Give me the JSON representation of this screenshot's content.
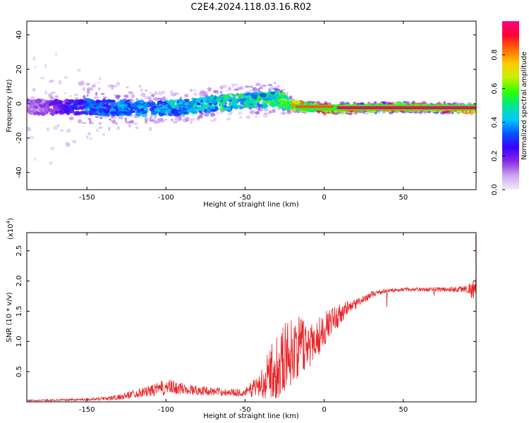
{
  "figure": {
    "title": "C2E4.2024.118.03.16.R02"
  },
  "chart_data": [
    {
      "type": "heatmap",
      "title": "C2E4.2024.118.03.16.R02",
      "xlabel": "Height of straight line (km)",
      "ylabel": "Frequency (Hz)",
      "xlim": [
        -188,
        96
      ],
      "ylim": [
        -50,
        48
      ],
      "xticks": [
        -150,
        -100,
        -50,
        0,
        50
      ],
      "yticks": [
        40,
        20,
        0,
        -20,
        -40
      ],
      "colorbar": {
        "label": "Normalized spectral amplitude",
        "range": [
          0.0,
          1.0
        ],
        "ticks": [
          0.0,
          0.2,
          0.4,
          0.6,
          0.8
        ],
        "stops": [
          "#f4ecfb",
          "#c9a6f0",
          "#8a2be2",
          "#3c00ff",
          "#0055ff",
          "#00c8ff",
          "#00e68c",
          "#33ff00",
          "#c8f000",
          "#ffc800",
          "#ff6a00",
          "#ff0033",
          "#ff0080"
        ]
      },
      "description_points": [
        {
          "x": -180,
          "freq_center": -2,
          "spread": 48,
          "amp": 0.15
        },
        {
          "x": -150,
          "freq_center": -2,
          "spread": 20,
          "amp": 0.35
        },
        {
          "x": -100,
          "freq_center": -3,
          "spread": 10,
          "amp": 0.45
        },
        {
          "x": -60,
          "freq_center": 1,
          "spread": 10,
          "amp": 0.5
        },
        {
          "x": -30,
          "freq_center": 3,
          "spread": 10,
          "amp": 0.55
        },
        {
          "x": -20,
          "freq_center": -1,
          "spread": 4,
          "amp": 0.75
        },
        {
          "x": 5,
          "freq_center": -3,
          "spread": 3,
          "amp": 0.9
        },
        {
          "x": 50,
          "freq_center": -2,
          "spread": 3,
          "amp": 0.95
        },
        {
          "x": 90,
          "freq_center": -3,
          "spread": 3,
          "amp": 0.9
        }
      ]
    },
    {
      "type": "line",
      "xlabel": "Height of straight line (km)",
      "ylabel": "SNR (10 * v/v)",
      "y_multiplier": "(x10",
      "y_multiplier_exp": "4",
      "xlim": [
        -188,
        96
      ],
      "ylim": [
        0,
        2.8
      ],
      "xticks": [
        -150,
        -100,
        -50,
        0,
        50
      ],
      "yticks": [
        0.5,
        1.0,
        1.5,
        2.0,
        2.5
      ],
      "ytick_labels": [
        "0.5",
        "1.0",
        "1.5",
        "2.0",
        "2.5"
      ],
      "series": [
        {
          "name": "SNR",
          "color": "#e8262a",
          "envelope_x": [
            -188,
            -150,
            -130,
            -120,
            -110,
            -100,
            -90,
            -80,
            -70,
            -60,
            -50,
            -40,
            -35,
            -30,
            -25,
            -20,
            -15,
            -10,
            -5,
            0,
            5,
            10,
            15,
            20,
            25,
            30,
            40,
            50,
            60,
            70,
            80,
            90,
            95
          ],
          "envelope_mean": [
            0.02,
            0.04,
            0.07,
            0.14,
            0.18,
            0.24,
            0.22,
            0.19,
            0.17,
            0.16,
            0.15,
            0.3,
            0.45,
            0.6,
            0.75,
            0.85,
            0.92,
            0.95,
            1.05,
            1.2,
            1.35,
            1.45,
            1.55,
            1.62,
            1.7,
            1.78,
            1.84,
            1.86,
            1.86,
            1.86,
            1.86,
            1.87,
            1.86
          ],
          "envelope_noise": [
            0.01,
            0.02,
            0.05,
            0.07,
            0.09,
            0.14,
            0.1,
            0.08,
            0.07,
            0.06,
            0.06,
            0.25,
            0.4,
            0.55,
            0.6,
            0.55,
            0.5,
            0.4,
            0.35,
            0.28,
            0.22,
            0.18,
            0.14,
            0.09,
            0.06,
            0.05,
            0.03,
            0.03,
            0.03,
            0.04,
            0.05,
            0.06,
            0.2
          ]
        }
      ]
    }
  ]
}
